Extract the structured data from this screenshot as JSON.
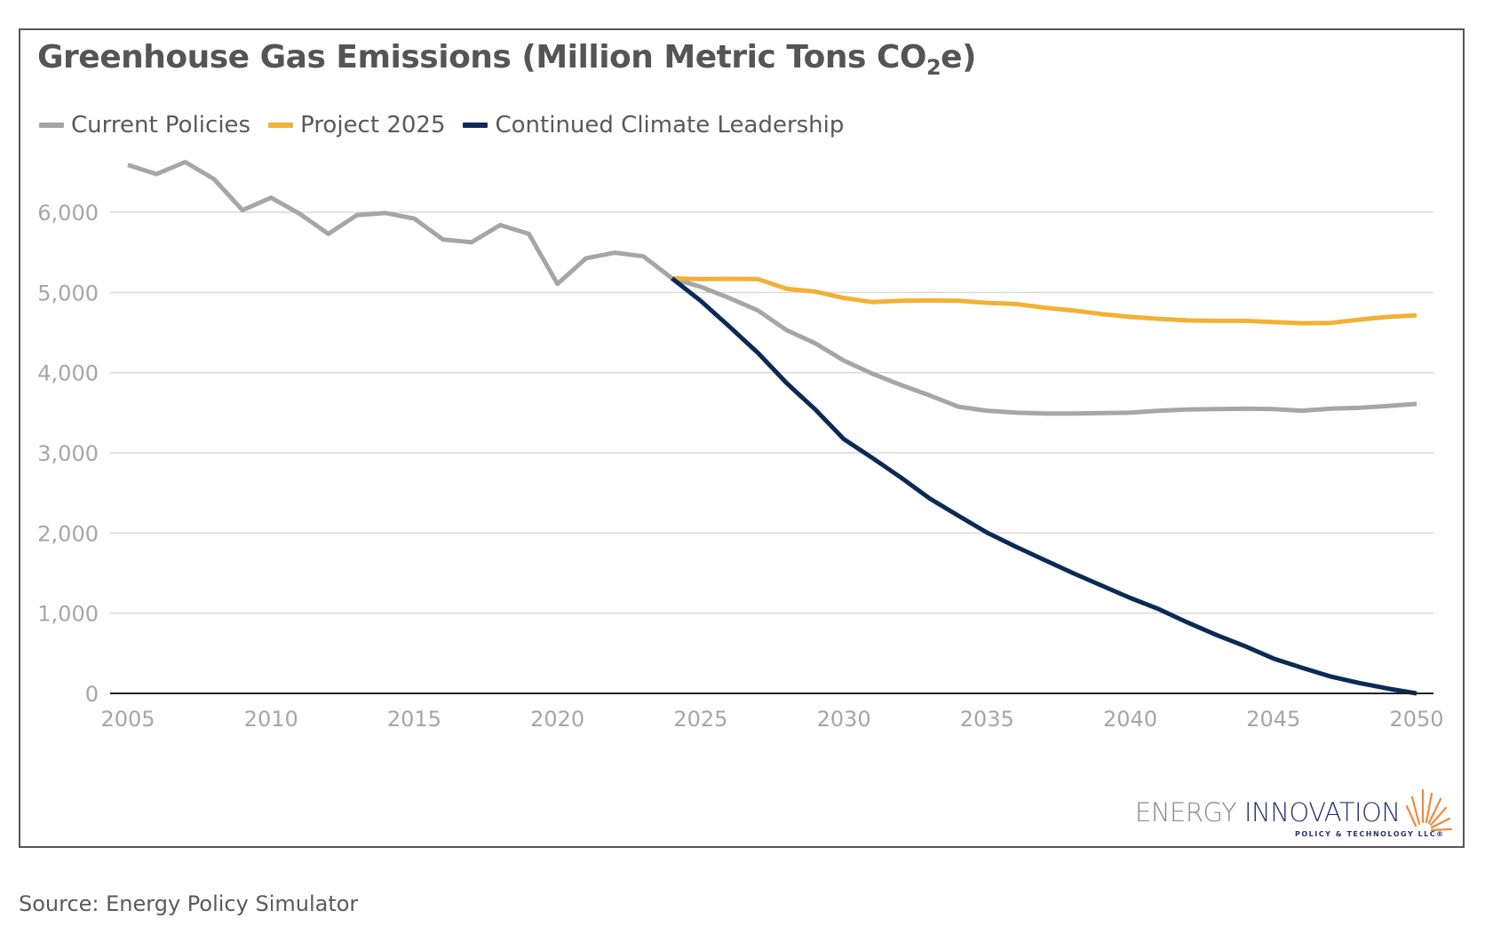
{
  "chart_data": {
    "type": "line",
    "title": "Greenhouse Gas Emissions (Million Metric Tons CO",
    "title_sub": "2",
    "title_end": "e)",
    "xlim": [
      2005,
      2050
    ],
    "ylim": [
      0,
      6000
    ],
    "x_ticks": [
      2005,
      2010,
      2015,
      2020,
      2025,
      2030,
      2035,
      2040,
      2045,
      2050
    ],
    "y_ticks": [
      "0",
      "1,000",
      "2,000",
      "3,000",
      "4,000",
      "5,000",
      "6,000"
    ],
    "y_tick_values": [
      0,
      1000,
      2000,
      3000,
      4000,
      5000,
      6000
    ],
    "grid": "horizontal",
    "legend_placement": "top-left",
    "series": [
      {
        "name": "Current Policies",
        "color": "#a6a6a6",
        "x": [
          2005,
          2006,
          2007,
          2008,
          2009,
          2010,
          2011,
          2012,
          2013,
          2014,
          2015,
          2016,
          2017,
          2018,
          2019,
          2020,
          2021,
          2022,
          2023,
          2024,
          2025,
          2026,
          2027,
          2028,
          2029,
          2030,
          2031,
          2032,
          2033,
          2034,
          2035,
          2036,
          2037,
          2038,
          2039,
          2040,
          2041,
          2042,
          2043,
          2044,
          2045,
          2046,
          2047,
          2048,
          2049,
          2050
        ],
        "values": [
          6590,
          6475,
          6625,
          6415,
          6025,
          6180,
          5980,
          5730,
          5965,
          5990,
          5920,
          5660,
          5625,
          5840,
          5730,
          5105,
          5425,
          5495,
          5450,
          5175,
          5070,
          4930,
          4775,
          4530,
          4365,
          4150,
          3985,
          3845,
          3715,
          3575,
          3525,
          3500,
          3490,
          3490,
          3495,
          3500,
          3525,
          3540,
          3545,
          3550,
          3545,
          3525,
          3550,
          3560,
          3585,
          3610
        ]
      },
      {
        "name": "Project 2025",
        "color": "#f2b134",
        "x": [
          2024,
          2025,
          2026,
          2027,
          2028,
          2029,
          2030,
          2031,
          2032,
          2033,
          2034,
          2035,
          2036,
          2037,
          2038,
          2039,
          2040,
          2041,
          2042,
          2043,
          2044,
          2045,
          2046,
          2047,
          2048,
          2049,
          2050
        ],
        "values": [
          5175,
          5165,
          5170,
          5165,
          5045,
          5010,
          4930,
          4880,
          4895,
          4900,
          4895,
          4870,
          4855,
          4810,
          4775,
          4730,
          4695,
          4670,
          4650,
          4645,
          4645,
          4630,
          4615,
          4620,
          4660,
          4695,
          4715
        ]
      },
      {
        "name": "Continued Climate Leadership",
        "color": "#0b2a55",
        "x": [
          2024,
          2025,
          2026,
          2027,
          2028,
          2029,
          2030,
          2031,
          2032,
          2033,
          2034,
          2035,
          2036,
          2037,
          2038,
          2039,
          2040,
          2041,
          2042,
          2043,
          2044,
          2045,
          2046,
          2047,
          2048,
          2049,
          2050
        ],
        "values": [
          5175,
          4895,
          4575,
          4245,
          3870,
          3540,
          3170,
          2935,
          2690,
          2430,
          2215,
          2005,
          1830,
          1665,
          1500,
          1345,
          1190,
          1050,
          885,
          730,
          590,
          435,
          320,
          210,
          130,
          60,
          0
        ]
      }
    ]
  },
  "logo": {
    "word1": "ENERGY",
    "word2": "INNOVATION",
    "tagline": "POLICY & TECHNOLOGY LLC®"
  },
  "source": "Source: Energy Policy Simulator"
}
